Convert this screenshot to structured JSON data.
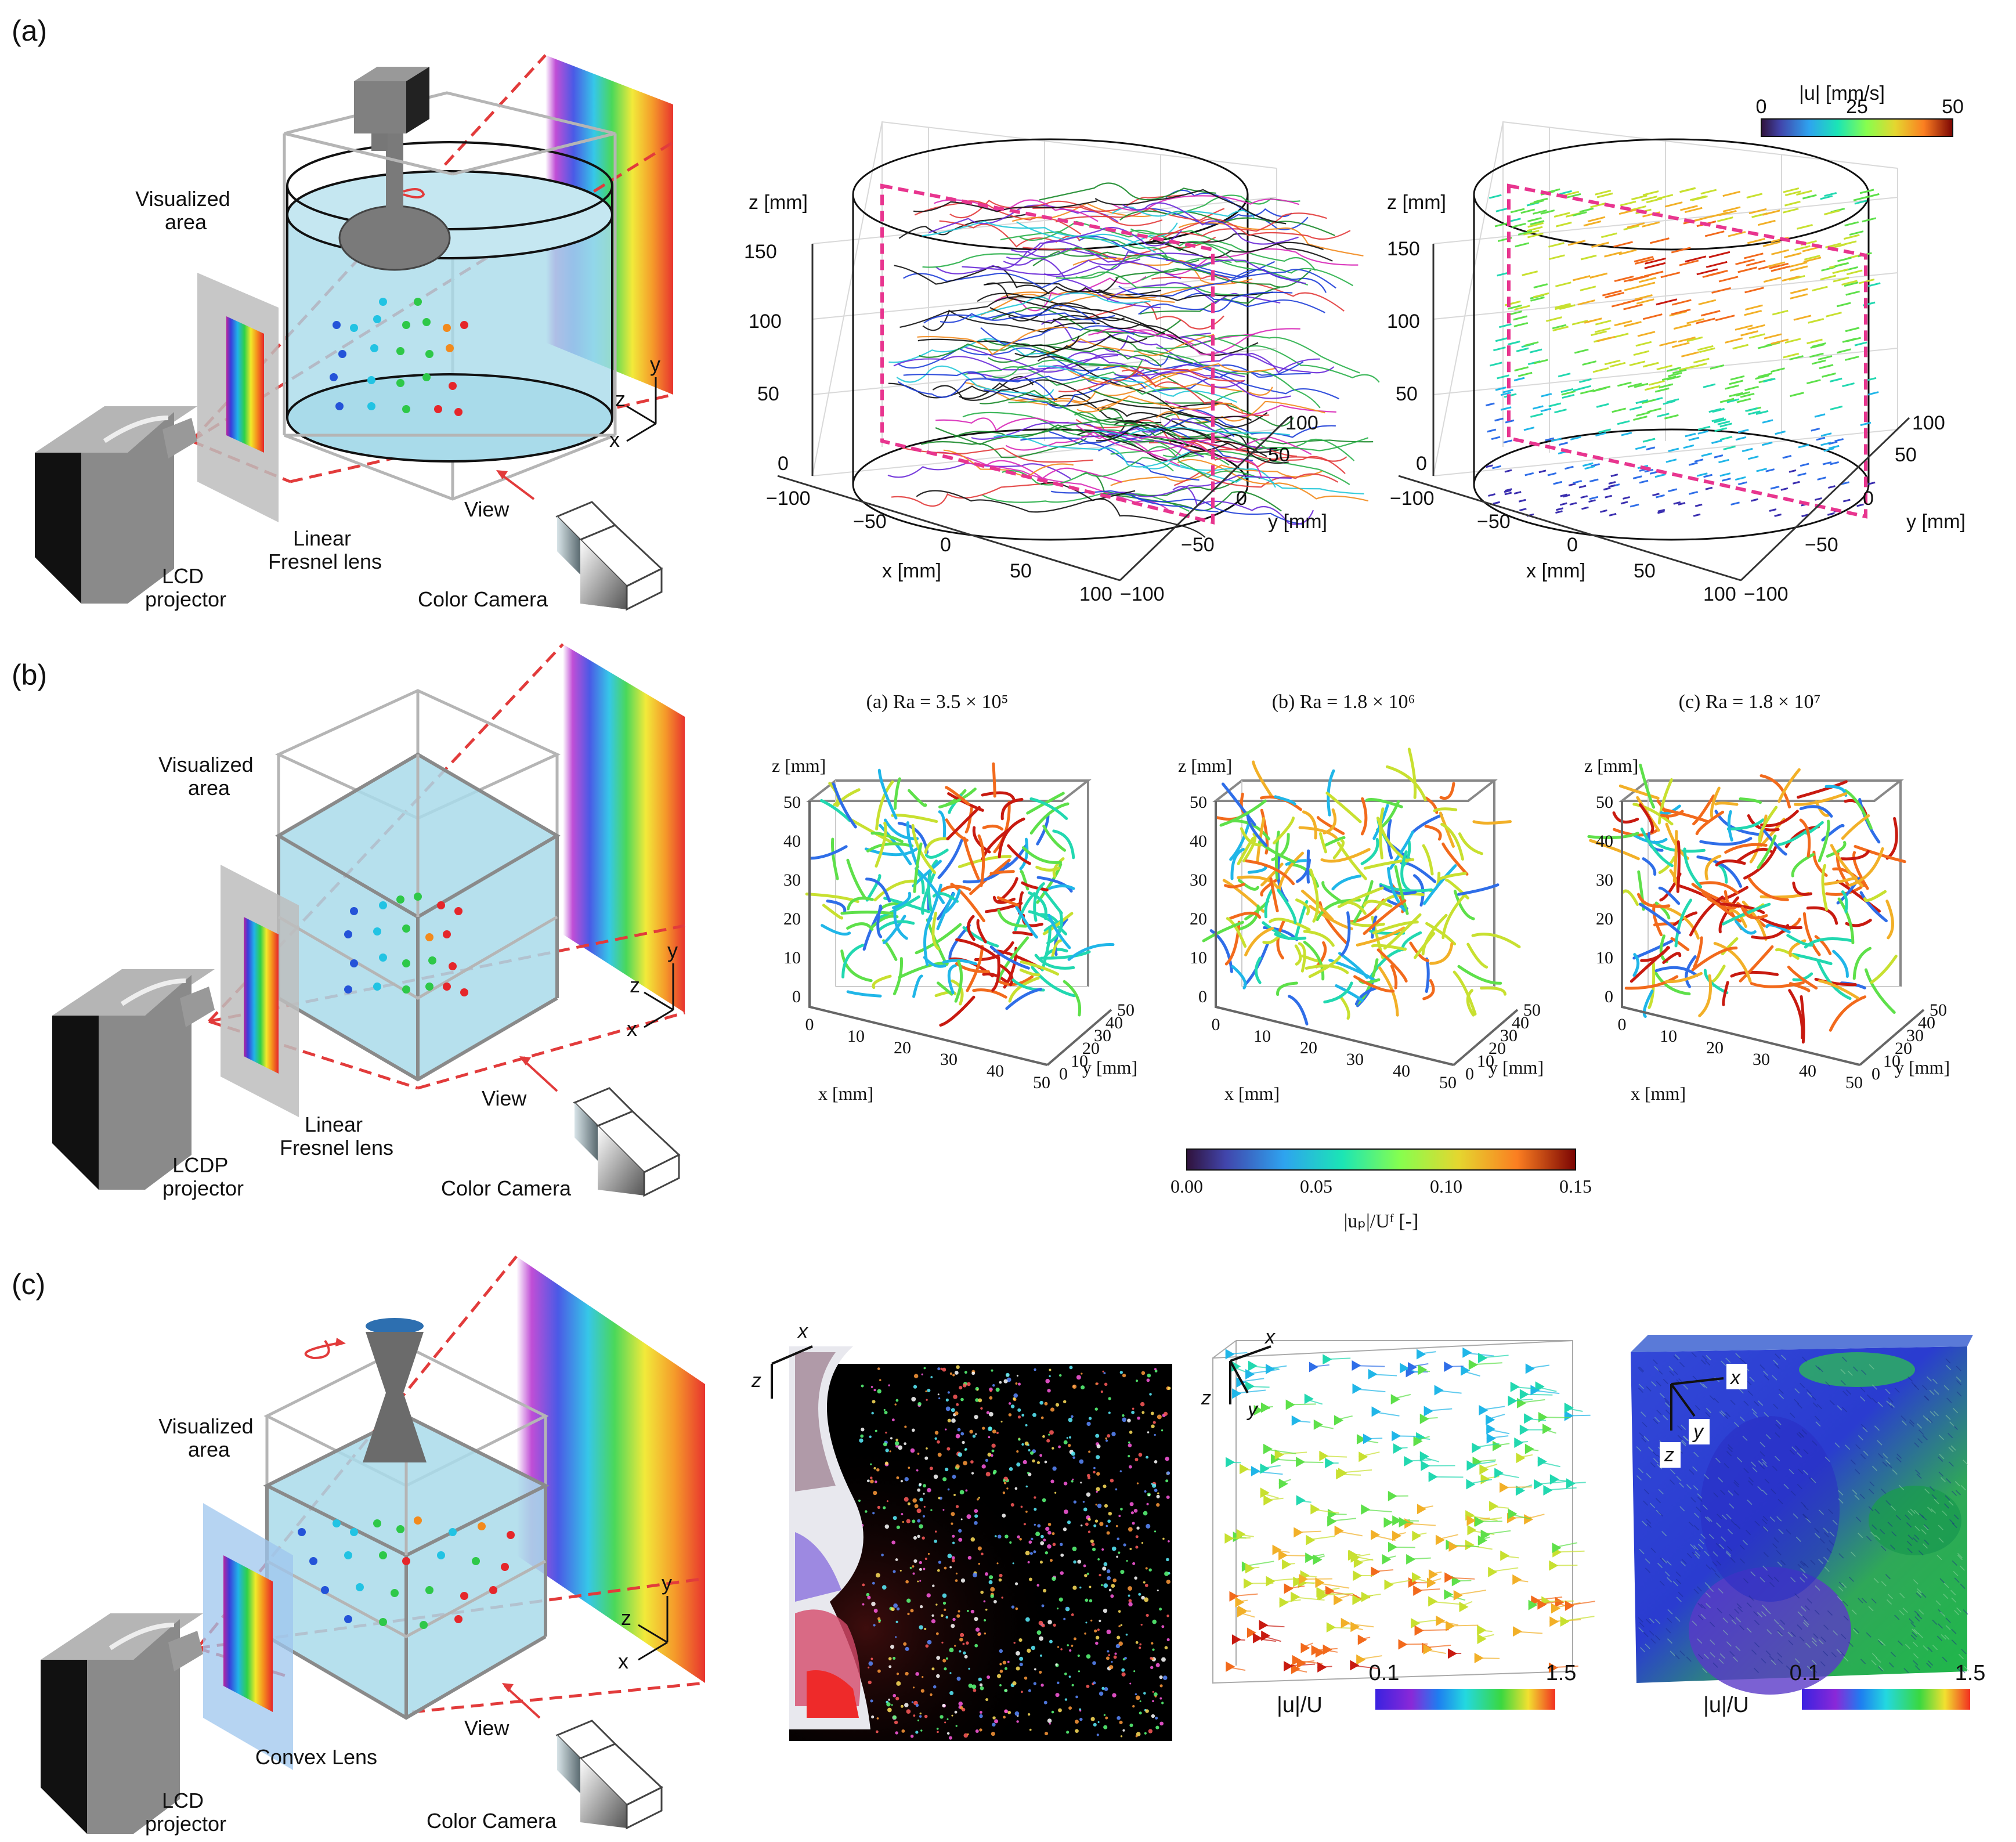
{
  "panels": {
    "a": {
      "label": "(a)",
      "schematic": {
        "visualized_area": [
          "Visualized",
          "area"
        ],
        "lens": [
          "Linear",
          "Fresnel lens"
        ],
        "projector": [
          "LCD",
          "projector"
        ],
        "camera": "Color Camera",
        "view": "View",
        "axes": [
          "z",
          "y",
          "x"
        ]
      },
      "plot1": {
        "zlabel": "z [mm]",
        "xlabel": "x [mm]",
        "ylabel": "y [mm]",
        "zticks": [
          "150",
          "100",
          "50",
          "0"
        ],
        "xticks": [
          "−100",
          "−50",
          "0",
          "50",
          "100"
        ],
        "yticks": [
          "−100",
          "−50",
          "0",
          "50",
          "100"
        ]
      },
      "plot2": {
        "zlabel": "z [mm]",
        "xlabel": "x [mm]",
        "ylabel": "y [mm]",
        "zticks": [
          "150",
          "100",
          "50",
          "0"
        ],
        "xticks": [
          "−100",
          "−50",
          "0",
          "50",
          "100"
        ],
        "yticks": [
          "−100",
          "−50",
          "0",
          "50",
          "100"
        ]
      },
      "colorbar": {
        "title": "|u| [mm/s]",
        "ticks": [
          "0",
          "25",
          "50"
        ]
      }
    },
    "b": {
      "label": "(b)",
      "schematic": {
        "visualized_area": [
          "Visualized",
          "area"
        ],
        "lens": [
          "Linear",
          "Fresnel lens"
        ],
        "projector": [
          "LCDP",
          "projector"
        ],
        "camera": "Color Camera",
        "view": "View",
        "axes": [
          "z",
          "y",
          "x"
        ]
      },
      "subplots": [
        {
          "title": "(a) Ra = 3.5 × 10⁵"
        },
        {
          "title": "(b) Ra = 1.8 × 10⁶"
        },
        {
          "title": "(c) Ra = 1.8 × 10⁷"
        }
      ],
      "axis": {
        "zlabel": "z [mm]",
        "xlabel": "x [mm]",
        "ylabel": "y [mm]",
        "zticks": [
          "50",
          "40",
          "30",
          "20",
          "10",
          "0"
        ],
        "xticks": [
          "0",
          "10",
          "20",
          "30",
          "40",
          "50"
        ],
        "yticks": [
          "0",
          "10",
          "20",
          "30",
          "40",
          "50"
        ]
      },
      "colorbar": {
        "ticks": [
          "0.00",
          "0.05",
          "0.10",
          "0.15"
        ],
        "label": "|uₚ|/Uᶠ [-]"
      }
    },
    "c": {
      "label": "(c)",
      "schematic": {
        "visualized_area": [
          "Visualized",
          "area"
        ],
        "lens": "Convex Lens",
        "projector": [
          "LCD",
          "projector"
        ],
        "camera": "Color Camera",
        "view": "View",
        "axes": [
          "z",
          "y",
          "x"
        ]
      },
      "photo_axes": [
        "x",
        "z"
      ],
      "vec_axes": [
        "x",
        "z",
        "y"
      ],
      "field_axes": [
        "x",
        "y",
        "z"
      ],
      "colorbar1": {
        "label": "|u|/U",
        "min": "0.1",
        "max": "1.5"
      },
      "colorbar2": {
        "label": "|u|/U",
        "min": "0.1",
        "max": "1.5"
      }
    }
  },
  "colors": {
    "accent_dash": "#e23b3b",
    "magenta": "#e8358f",
    "water": "#a9dbea",
    "frame": "#b0b0b0"
  }
}
